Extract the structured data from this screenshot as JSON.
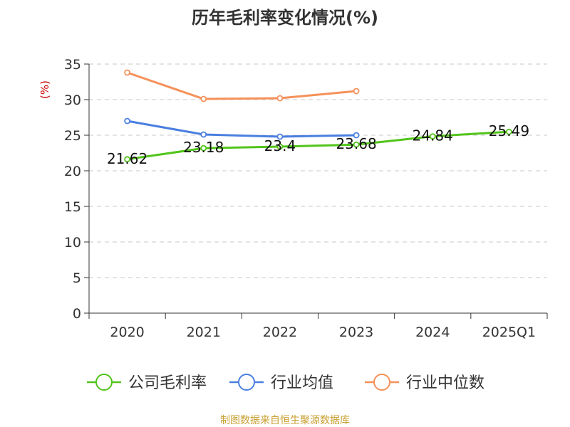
{
  "chart_data": {
    "type": "line",
    "title": "历年毛利率变化情况(%)",
    "ylabel": "(%)",
    "categories": [
      "2020",
      "2021",
      "2022",
      "2023",
      "2024",
      "2025Q1"
    ],
    "ylim": [
      0,
      35
    ],
    "yticks": [
      0,
      5,
      10,
      15,
      20,
      25,
      30,
      35
    ],
    "grid": true,
    "legend_position": "bottom",
    "series": [
      {
        "name": "公司毛利率",
        "color": "#52c41a",
        "values": [
          21.62,
          23.18,
          23.4,
          23.68,
          24.84,
          25.49
        ],
        "labels": [
          "21.62",
          "23.18",
          "23.4",
          "23.68",
          "24.84",
          "25.49"
        ]
      },
      {
        "name": "行业均值",
        "color": "#4a7fe0",
        "values": [
          27.0,
          25.1,
          24.8,
          25.0,
          null,
          null
        ]
      },
      {
        "name": "行业中位数",
        "color": "#f5915a",
        "values": [
          33.8,
          30.1,
          30.2,
          31.2,
          null,
          null
        ]
      }
    ]
  },
  "source": "制图数据来自恒生聚源数据库"
}
